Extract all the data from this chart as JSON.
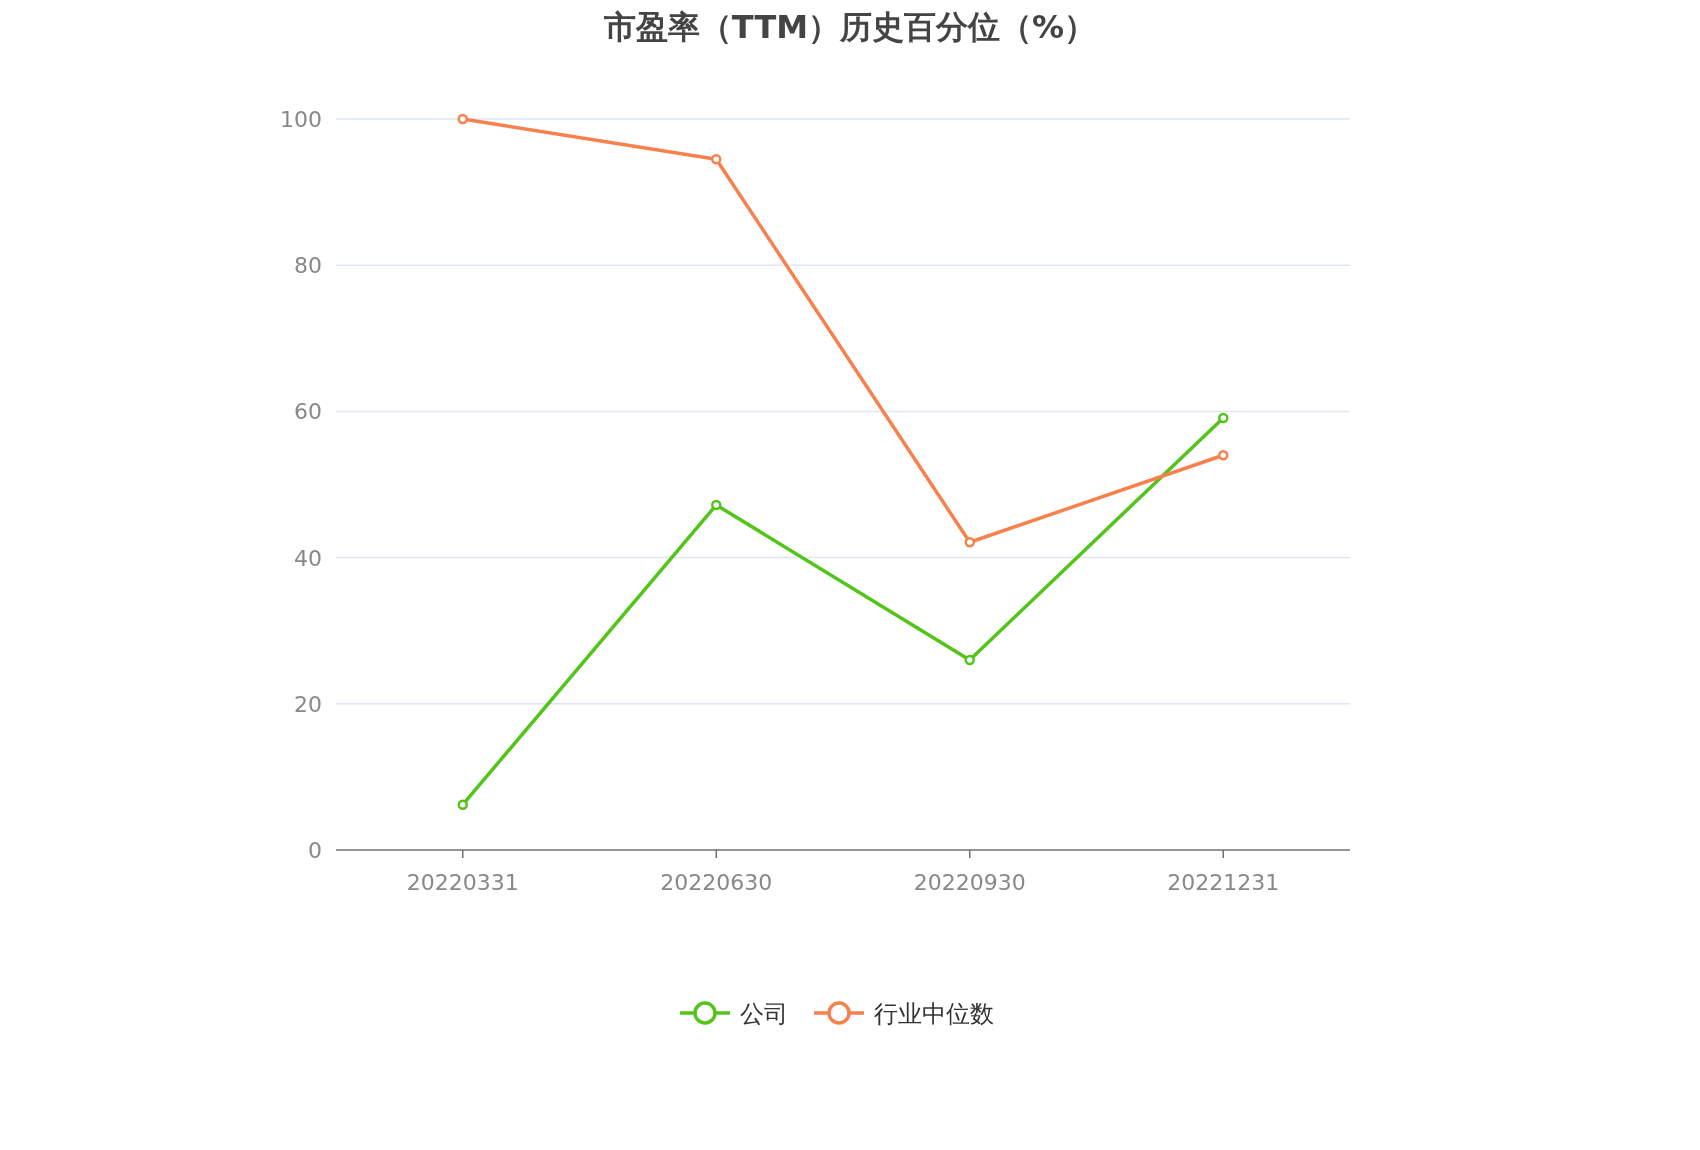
{
  "chart_data": {
    "type": "line",
    "title": "市盈率（TTM）历史百分位（%）",
    "categories": [
      "20220331",
      "20220630",
      "20220930",
      "20221231"
    ],
    "series": [
      {
        "name": "公司",
        "color": "#52c41a",
        "values": [
          6.2,
          47.2,
          26.0,
          59.1
        ]
      },
      {
        "name": "行业中位数",
        "color": "#f7814c",
        "values": [
          100,
          94.5,
          42.1,
          54.0
        ]
      }
    ],
    "ylim": [
      0,
      100
    ],
    "yticks": [
      0,
      20,
      40,
      60,
      80,
      100
    ],
    "grid": "y",
    "legend": "bottom",
    "marker": "circle",
    "line_style": "solid"
  }
}
